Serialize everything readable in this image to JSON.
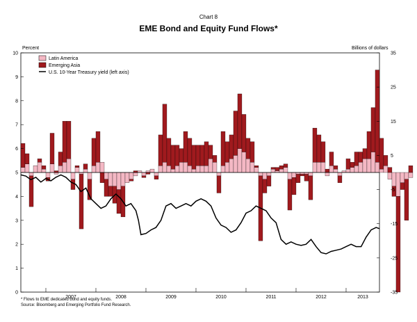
{
  "header": {
    "chart_number": "Chart 8",
    "title": "EME Bond and Equity Fund Flows*",
    "left_unit": "Percent",
    "right_unit": "Billions of dollars"
  },
  "footnotes": {
    "note": "* Flows to EME dedicated bond and equity funds.",
    "source": "Source: Bloomberg and Emerging Portfolio Fund Research."
  },
  "colors": {
    "latin_america": "#f4b8c4",
    "emerging_asia": "#a01a1e",
    "treasury_line": "#000000"
  },
  "chart_data": {
    "type": "bar",
    "stacked": true,
    "title": "EME Bond and Equity Fund Flows*",
    "xlabel": "",
    "left_axis": {
      "label": "Percent",
      "range": [
        0,
        10
      ],
      "ticks": [
        0,
        1,
        2,
        3,
        4,
        5,
        6,
        7,
        8,
        9,
        10
      ]
    },
    "right_axis": {
      "label": "Billions of dollars",
      "range": [
        -35,
        35
      ],
      "ticks": [
        -35,
        -25,
        -15,
        -5,
        5,
        15,
        25,
        35
      ]
    },
    "x_range": [
      2006.5,
      2013.667
    ],
    "year_labels": [
      "2007",
      "2008",
      "2009",
      "2010",
      "2011",
      "2012",
      "2013"
    ],
    "year_boundaries": [
      2007,
      2008,
      2009,
      2010,
      2011,
      2012,
      2013
    ],
    "legend": [
      "Latin America",
      "Emerging Asia",
      "U.S. 10-Year Treasury yield (left axis)"
    ],
    "legend_position": "top-left",
    "bar_start": 2006.5,
    "bar_step": 0.08333,
    "series": [
      {
        "name": "Latin America",
        "units": "Billions of dollars",
        "values": [
          1.5,
          2.5,
          -1,
          2,
          3,
          1,
          -1.5,
          2.5,
          -0.5,
          2,
          3,
          4,
          -2,
          1.5,
          -0.5,
          1,
          -2,
          2,
          3,
          3,
          -2,
          -4,
          -4,
          -5,
          -4,
          -3,
          -2,
          -1,
          0.5,
          -1,
          0.5,
          1,
          -1,
          2,
          3,
          2,
          1,
          2,
          3,
          3,
          2,
          1,
          2,
          2,
          2,
          4,
          3,
          -1,
          2,
          3,
          4,
          5,
          7,
          6,
          4,
          3,
          1.5,
          -1,
          -2,
          -1,
          1,
          0.5,
          1,
          1.5,
          -2,
          -1.5,
          -0.5,
          -0.5,
          -0.5,
          -1,
          3,
          3,
          3,
          -1,
          2,
          1,
          -1,
          0.5,
          1,
          1.5,
          2,
          3,
          4,
          4,
          6,
          3,
          1,
          2,
          -2,
          -4,
          -7,
          -3,
          -2,
          -1.5
        ]
      },
      {
        "name": "Emerging Asia",
        "units": "Billions of dollars",
        "values": [
          7,
          3,
          -9,
          0,
          1,
          1,
          -1,
          9,
          0.5,
          4,
          12,
          11,
          -3,
          0.5,
          -16,
          1.5,
          -6,
          8,
          9,
          -3,
          -5,
          -3,
          -5,
          -7,
          -9,
          0,
          -0.5,
          0.5,
          0,
          -0.5,
          -0.5,
          0,
          -1,
          9,
          17,
          8,
          7,
          6,
          4,
          9,
          8,
          7,
          6,
          6,
          7,
          4,
          2,
          -5,
          10,
          6,
          7,
          13,
          16,
          11,
          6,
          6,
          0.5,
          -19,
          -4,
          -3,
          0.5,
          1,
          1,
          1,
          -9,
          -5,
          -2.5,
          -0.5,
          -2,
          -7,
          10,
          8,
          6,
          1,
          4,
          1,
          -2,
          0,
          3,
          1.5,
          4,
          3,
          3,
          8,
          13,
          27,
          9,
          3,
          1.5,
          -3,
          -28,
          -2,
          -12,
          2
        ]
      },
      {
        "name": "U.S. 10-Year Treasury yield (left axis)",
        "units": "Percent",
        "x": [
          2006.5,
          2006.6,
          2006.7,
          2006.8,
          2006.9,
          2007.0,
          2007.1,
          2007.2,
          2007.3,
          2007.4,
          2007.5,
          2007.6,
          2007.7,
          2007.8,
          2007.9,
          2008.0,
          2008.1,
          2008.2,
          2008.3,
          2008.4,
          2008.5,
          2008.6,
          2008.7,
          2008.8,
          2008.85,
          2008.9,
          2009.0,
          2009.1,
          2009.2,
          2009.3,
          2009.4,
          2009.5,
          2009.6,
          2009.7,
          2009.8,
          2009.9,
          2010.0,
          2010.1,
          2010.2,
          2010.3,
          2010.4,
          2010.5,
          2010.6,
          2010.7,
          2010.8,
          2010.9,
          2011.0,
          2011.1,
          2011.2,
          2011.3,
          2011.4,
          2011.5,
          2011.6,
          2011.7,
          2011.8,
          2011.9,
          2012.0,
          2012.1,
          2012.2,
          2012.3,
          2012.4,
          2012.5,
          2012.6,
          2012.7,
          2012.8,
          2012.9,
          2013.0,
          2013.1,
          2013.2,
          2013.3,
          2013.4,
          2013.5,
          2013.6,
          2013.667
        ],
        "values": [
          4.9,
          4.85,
          4.7,
          4.8,
          4.6,
          4.75,
          4.65,
          4.8,
          4.9,
          4.8,
          4.6,
          4.5,
          4.2,
          4.35,
          3.9,
          3.7,
          3.5,
          3.6,
          3.9,
          4.1,
          3.9,
          3.6,
          3.7,
          3.4,
          3.0,
          2.4,
          2.45,
          2.6,
          2.7,
          3.0,
          3.6,
          3.7,
          3.5,
          3.6,
          3.7,
          3.6,
          3.8,
          3.9,
          3.8,
          3.6,
          3.1,
          2.8,
          2.7,
          2.5,
          2.6,
          2.9,
          3.3,
          3.4,
          3.6,
          3.5,
          3.4,
          3.1,
          2.9,
          2.2,
          2.0,
          2.1,
          2.0,
          1.95,
          2.0,
          2.2,
          1.9,
          1.65,
          1.6,
          1.7,
          1.75,
          1.8,
          1.9,
          2.0,
          1.9,
          1.9,
          2.3,
          2.6,
          2.7,
          2.65
        ]
      }
    ]
  }
}
